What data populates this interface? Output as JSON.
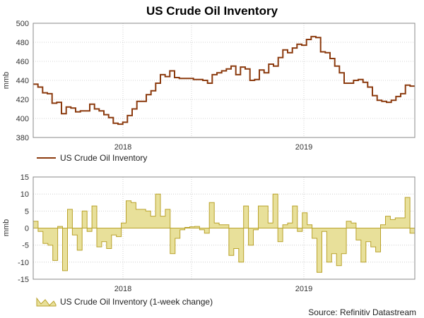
{
  "title": "US Crude Oil Inventory",
  "source": "Source: Refinitiv Datastream",
  "colors": {
    "line": "#8b3a0e",
    "bar_fill": "#e8e09a",
    "bar_stroke": "#b9a22c",
    "grid": "#c8c8c8"
  },
  "chart_data": [
    {
      "type": "line",
      "ylabel": "mmb",
      "ylim": [
        380,
        500
      ],
      "yticks": [
        380,
        400,
        420,
        440,
        460,
        480,
        500
      ],
      "xtick_labels": [
        "2018",
        "2019"
      ],
      "grid": true,
      "legend_position": "bottom-left",
      "series": [
        {
          "name": "US Crude Oil Inventory",
          "values": [
            436,
            433,
            427,
            426,
            416,
            417,
            405,
            412,
            411,
            407,
            408,
            408,
            415,
            410,
            408,
            404,
            401,
            395,
            394,
            396,
            403,
            410,
            418,
            418,
            425,
            429,
            437,
            446,
            444,
            450,
            443,
            442,
            442,
            442,
            441,
            441,
            440,
            437,
            446,
            448,
            450,
            452,
            455,
            446,
            454,
            452,
            440,
            441,
            451,
            448,
            457,
            455,
            464,
            472,
            469,
            474,
            478,
            477,
            483,
            486,
            485,
            470,
            469,
            463,
            455,
            448,
            437,
            437,
            440,
            441,
            438,
            433,
            424,
            419,
            418,
            417,
            419,
            423,
            426,
            435,
            434
          ]
        }
      ]
    },
    {
      "type": "bar",
      "ylabel": "mmb",
      "ylim": [
        -15,
        15
      ],
      "yticks": [
        -15,
        -10,
        -5,
        0,
        5,
        10,
        15
      ],
      "xtick_labels": [
        "2018",
        "2019"
      ],
      "grid": true,
      "legend_position": "bottom-left",
      "series": [
        {
          "name": "US Crude Oil Inventory (1-week change)",
          "values": [
            2,
            -1,
            -4.5,
            -5,
            -9.5,
            0.5,
            -12.5,
            5.5,
            -2,
            -6.5,
            5,
            -1,
            6.5,
            -5.5,
            -4,
            -6,
            -2,
            -2.5,
            1.5,
            8,
            7.5,
            5.5,
            5.5,
            5,
            3.5,
            10,
            3.5,
            5.5,
            -7.5,
            -3,
            -0.5,
            0.2,
            0.4,
            0.5,
            -0.5,
            -1.5,
            7.5,
            1.5,
            1,
            1,
            -8,
            -6,
            -10,
            6.5,
            -5,
            -0.5,
            6.5,
            6.5,
            1.5,
            10,
            -4,
            1,
            1.5,
            6.5,
            -1,
            4.5,
            1,
            -3,
            -13,
            -1,
            -10,
            -7.5,
            -11,
            -7.5,
            2,
            1.5,
            -3.5,
            -10,
            -4,
            -5.5,
            -7,
            1,
            3.5,
            2.5,
            3,
            3,
            9,
            -1.5
          ]
        }
      ]
    }
  ]
}
